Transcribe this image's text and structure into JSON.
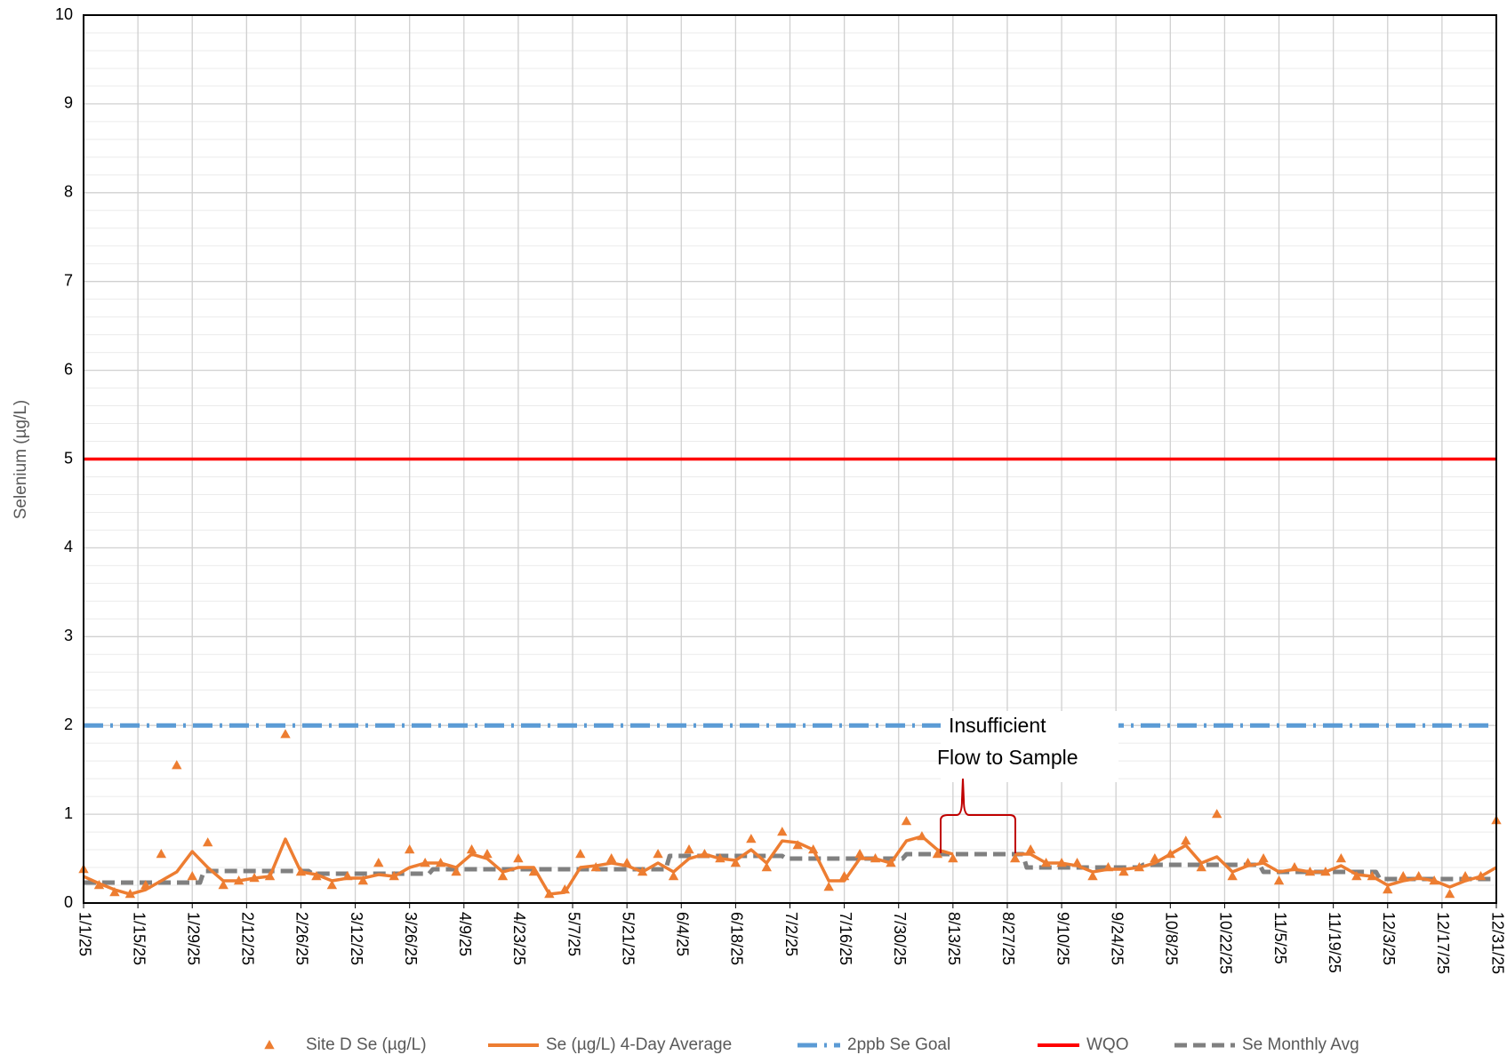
{
  "chart_data": {
    "type": "line",
    "y_label": "Selenium (µg/L)",
    "ylim": [
      0,
      10
    ],
    "yticks": [
      0,
      1,
      2,
      3,
      4,
      5,
      6,
      7,
      8,
      9,
      10
    ],
    "xlim": [
      "1/1/25",
      "12/31/25"
    ],
    "xticks": [
      "1/1/25",
      "1/15/25",
      "1/29/25",
      "2/12/25",
      "2/26/25",
      "3/12/25",
      "3/26/25",
      "4/9/25",
      "4/23/25",
      "5/7/25",
      "5/21/25",
      "6/4/25",
      "6/18/25",
      "7/2/25",
      "7/16/25",
      "7/30/25",
      "8/13/25",
      "8/27/25",
      "9/10/25",
      "9/24/25",
      "10/8/25",
      "10/22/25",
      "11/5/25",
      "11/19/25",
      "12/3/25",
      "12/17/25",
      "12/31/25"
    ],
    "grid": true,
    "legend": "bottom",
    "annotation_lines": [
      "Insufficient",
      "Flow to Sample"
    ],
    "x": [
      "1/1/25",
      "1/5/25",
      "1/9/25",
      "1/13/25",
      "1/17/25",
      "1/21/25",
      "1/25/25",
      "1/29/25",
      "2/2/25",
      "2/6/25",
      "2/10/25",
      "2/14/25",
      "2/18/25",
      "2/22/25",
      "2/26/25",
      "3/2/25",
      "3/6/25",
      "3/10/25",
      "3/14/25",
      "3/18/25",
      "3/22/25",
      "3/26/25",
      "3/30/25",
      "4/3/25",
      "4/7/25",
      "4/11/25",
      "4/15/25",
      "4/19/25",
      "4/23/25",
      "4/27/25",
      "5/1/25",
      "5/5/25",
      "5/9/25",
      "5/13/25",
      "5/17/25",
      "5/21/25",
      "5/25/25",
      "5/29/25",
      "6/2/25",
      "6/6/25",
      "6/10/25",
      "6/14/25",
      "6/18/25",
      "6/22/25",
      "6/26/25",
      "6/30/25",
      "7/4/25",
      "7/8/25",
      "7/12/25",
      "7/16/25",
      "7/20/25",
      "7/24/25",
      "7/28/25",
      "8/1/25",
      "8/5/25",
      "8/9/25",
      "8/13/25",
      "8/17/25",
      "8/21/25",
      "8/25/25",
      "8/29/25",
      "9/2/25",
      "9/6/25",
      "9/10/25",
      "9/14/25",
      "9/18/25",
      "9/22/25",
      "9/26/25",
      "9/30/25",
      "10/4/25",
      "10/8/25",
      "10/12/25",
      "10/16/25",
      "10/20/25",
      "10/24/25",
      "10/28/25",
      "11/1/25",
      "11/5/25",
      "11/9/25",
      "11/13/25",
      "11/17/25",
      "11/21/25",
      "11/25/25",
      "11/29/25",
      "12/3/25",
      "12/7/25",
      "12/11/25",
      "12/15/25",
      "12/19/25",
      "12/23/25",
      "12/27/25",
      "12/31/25"
    ],
    "series": [
      {
        "name": "Site D Se (µg/L)",
        "type": "scatter",
        "color": "#ed7d31",
        "values": [
          0.38,
          0.2,
          0.12,
          0.1,
          0.2,
          0.55,
          1.55,
          0.3,
          0.68,
          0.2,
          0.25,
          0.28,
          0.3,
          1.9,
          0.35,
          0.3,
          0.2,
          0.3,
          0.25,
          0.45,
          0.3,
          0.6,
          0.45,
          0.45,
          0.35,
          0.6,
          0.55,
          0.3,
          0.5,
          0.35,
          0.1,
          0.15,
          0.55,
          0.4,
          0.5,
          0.45,
          0.35,
          0.55,
          0.3,
          0.6,
          0.55,
          0.5,
          0.45,
          0.72,
          0.4,
          0.8,
          0.65,
          0.6,
          0.18,
          0.3,
          0.55,
          0.5,
          0.45,
          0.92,
          0.75,
          0.55,
          0.5,
          null,
          null,
          null,
          0.5,
          0.6,
          0.45,
          0.45,
          0.45,
          0.3,
          0.4,
          0.35,
          0.4,
          0.5,
          0.55,
          0.7,
          0.4,
          1.0,
          0.3,
          0.45,
          0.5,
          0.25,
          0.4,
          0.35,
          0.35,
          0.5,
          0.3,
          0.3,
          0.15,
          0.3,
          0.3,
          0.25,
          0.1,
          0.3,
          0.3,
          0.93
        ]
      },
      {
        "name": "Se (µg/L) 4-Day Average",
        "type": "line",
        "color": "#ed7d31",
        "values": [
          0.3,
          0.22,
          0.15,
          0.1,
          0.15,
          0.25,
          0.35,
          0.58,
          0.4,
          0.25,
          0.25,
          0.28,
          0.3,
          0.72,
          0.35,
          0.32,
          0.25,
          0.28,
          0.28,
          0.32,
          0.3,
          0.4,
          0.45,
          0.45,
          0.4,
          0.55,
          0.5,
          0.35,
          0.4,
          0.4,
          0.1,
          0.12,
          0.4,
          0.42,
          0.45,
          0.42,
          0.35,
          0.45,
          0.35,
          0.5,
          0.55,
          0.5,
          0.48,
          0.6,
          0.45,
          0.7,
          0.68,
          0.6,
          0.25,
          0.25,
          0.5,
          0.5,
          0.45,
          0.7,
          0.75,
          0.6,
          0.55,
          null,
          null,
          null,
          0.55,
          0.55,
          0.45,
          0.45,
          0.42,
          0.35,
          0.38,
          0.38,
          0.4,
          0.45,
          0.55,
          0.65,
          0.45,
          0.52,
          0.35,
          0.42,
          0.45,
          0.35,
          0.38,
          0.35,
          0.35,
          0.42,
          0.32,
          0.3,
          0.2,
          0.25,
          0.28,
          0.25,
          0.18,
          0.25,
          0.3,
          0.4
        ]
      },
      {
        "name": "2ppb Se Goal",
        "type": "line",
        "color": "#5b9bd5",
        "dash": "dash-dot",
        "x": [
          "1/1/25",
          "12/31/25"
        ],
        "values": [
          2,
          2
        ]
      },
      {
        "name": "WQO",
        "type": "line",
        "color": "#ff0000",
        "x": [
          "1/1/25",
          "12/31/25"
        ],
        "values": [
          5,
          5
        ]
      },
      {
        "name": "Se Monthly Avg",
        "type": "line",
        "color": "#808080",
        "dash": "dash",
        "x": [
          "1/1/25",
          "1/31/25",
          "2/1/25",
          "2/28/25",
          "3/1/25",
          "3/31/25",
          "4/1/25",
          "4/30/25",
          "5/1/25",
          "5/31/25",
          "6/1/25",
          "6/30/25",
          "7/1/25",
          "7/31/25",
          "8/1/25",
          "8/31/25",
          "9/1/25",
          "9/30/25",
          "10/1/25",
          "10/31/25",
          "11/1/25",
          "11/30/25",
          "12/1/25",
          "12/31/25"
        ],
        "values": [
          0.23,
          0.23,
          0.36,
          0.36,
          0.33,
          0.33,
          0.38,
          0.38,
          0.38,
          0.38,
          0.53,
          0.53,
          0.5,
          0.5,
          0.55,
          0.55,
          0.4,
          0.4,
          0.43,
          0.43,
          0.35,
          0.35,
          0.27,
          0.27
        ]
      }
    ]
  }
}
